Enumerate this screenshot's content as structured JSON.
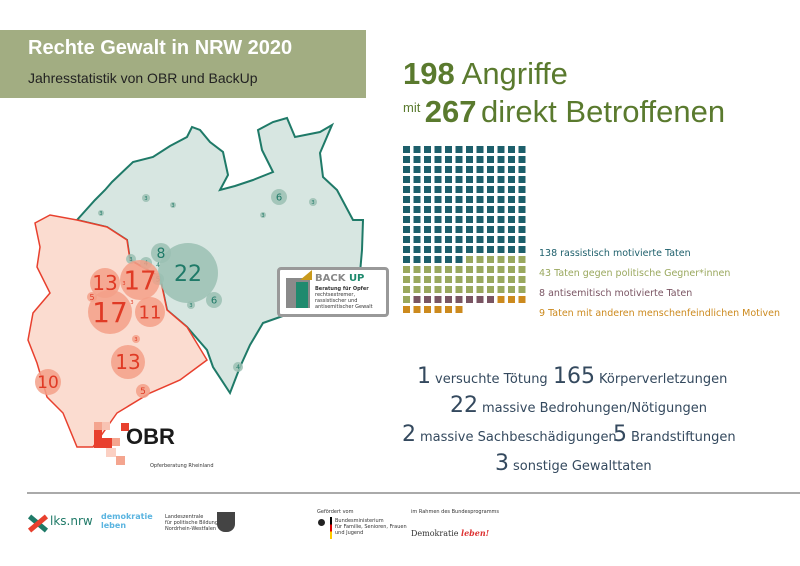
{
  "header": {
    "title": "Rechte Gewalt in NRW 2020",
    "subtitle": "Jahresstatistik von OBR und BackUp"
  },
  "headline": {
    "attacks_number": "198",
    "attacks_label": "Angriffe",
    "mit": "mit",
    "victims_number": "267",
    "victims_label": "direkt Betroffenen",
    "color": "#5a7a2e"
  },
  "chart_data": {
    "type": "waffle",
    "columns": 12,
    "categories": [
      "138 rassistisch motivierte Taten",
      "43 Taten gegen politische Gegner*innen",
      "8 antisemitisch motivierte Taten",
      "9 Taten mit anderen menschenfeindlichen Motiven"
    ],
    "values": [
      138,
      43,
      8,
      9
    ],
    "colors": [
      "#1d5f6b",
      "#9aa85e",
      "#7a5563",
      "#cc8a1e"
    ]
  },
  "map": {
    "regions": [
      {
        "name": "BackUp",
        "color": "#d7e6e1",
        "stroke": "#1f7a68"
      },
      {
        "name": "OBR",
        "color": "#fbdcd0",
        "stroke": "#e8402e"
      }
    ],
    "bubbles_backup": [
      "22",
      "8",
      "4",
      "4",
      "5",
      "3",
      "6",
      "3",
      "6",
      "3",
      "4",
      "3",
      "3",
      "3",
      "3"
    ],
    "bubbles_obr": [
      "13",
      "17",
      "17",
      "11",
      "13",
      "10",
      "5",
      "5",
      "3",
      "3",
      "3"
    ]
  },
  "logos": {
    "backup": {
      "title_a": "BACK",
      "title_b": "UP",
      "line1": "Beratung für Opfer",
      "line2": "rechtsextremer,",
      "line3": "rassistischer und",
      "line4": "antisemitischer Gewalt"
    },
    "obr": {
      "title": "OBR",
      "subtitle": "Opferberatung Rheinland"
    }
  },
  "stats": [
    {
      "n": "1",
      "label": "versuchte Tötung"
    },
    {
      "n": "165",
      "label": "Körperverletzungen"
    },
    {
      "n": "22",
      "label": "massive Bedrohungen/Nötigungen"
    },
    {
      "n": "2",
      "label": "massive Sachbeschädigungen"
    },
    {
      "n": "5",
      "label": "Brandstiftungen"
    },
    {
      "n": "3",
      "label": "sonstige Gewalttaten"
    }
  ],
  "footer": {
    "lks": "lks.nrw",
    "demokratie1": "demokratie",
    "leben1": "leben",
    "lz1": "Landeszentrale",
    "lz2": "für politische Bildung",
    "lz3": "Nordrhein-Westfalen",
    "gefoerdert": "Gefördert vom",
    "bm1": "Bundesministerium",
    "bm2": "für Familie, Senioren, Frauen",
    "bm3": "und Jugend",
    "rahmen": "im Rahmen des Bundesprogramms",
    "dl_a": "Demokratie",
    "dl_b": "leben!"
  }
}
